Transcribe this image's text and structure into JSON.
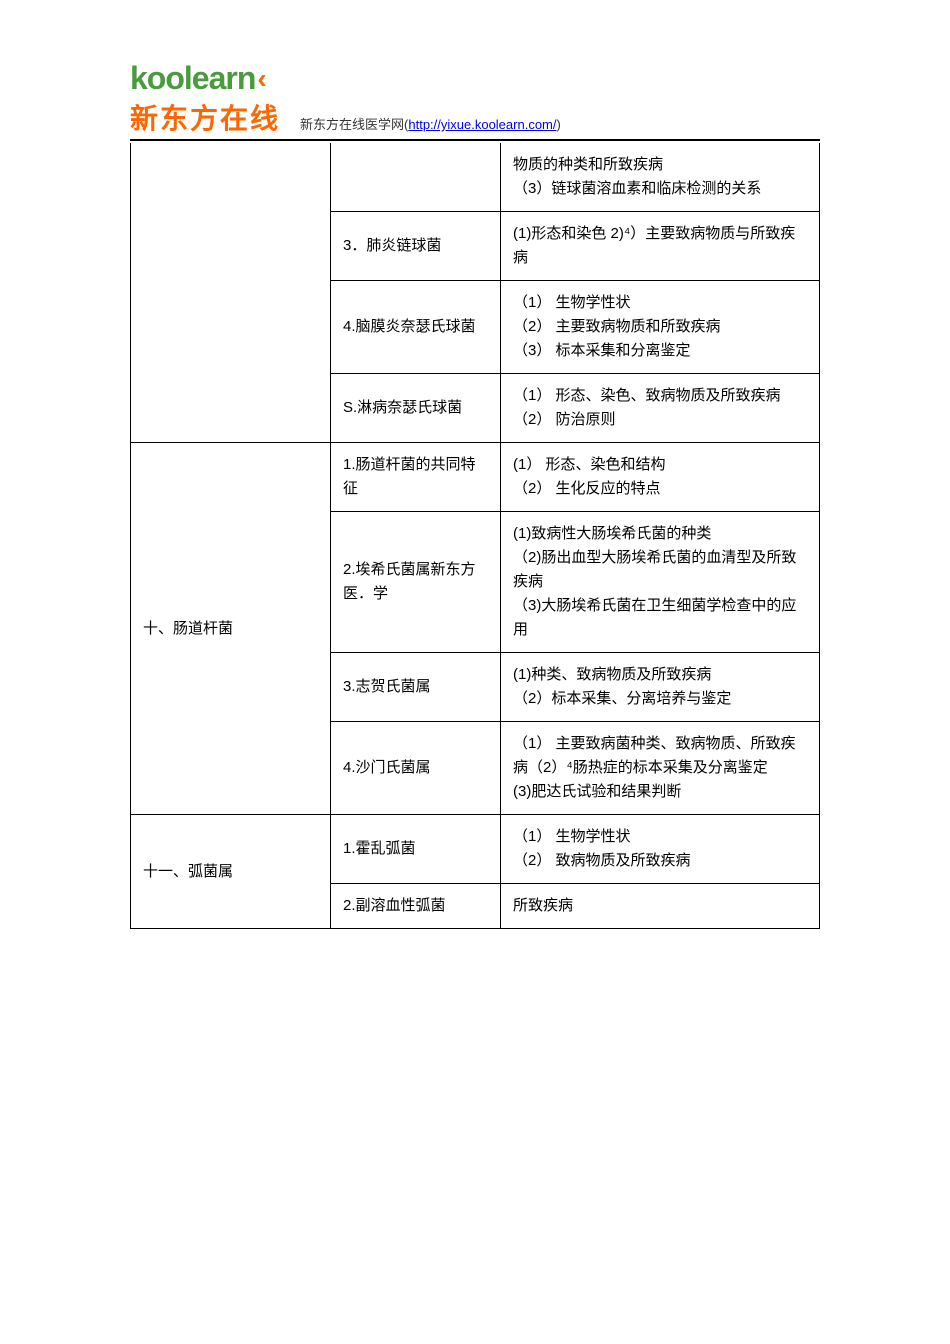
{
  "logo": {
    "top": "koolearn",
    "bottom": "新东方在线"
  },
  "header": {
    "prefix": "新东方在线医学网(",
    "url": "http://yixue.koolearn.com/",
    "suffix": ")"
  },
  "table": {
    "rows": [
      {
        "col1": "",
        "col2": "",
        "col3": "物质的种类和所致疾病\n（3）链球菌溶血素和临床检测的关系"
      },
      {
        "col1": "",
        "col2": "3．肺炎链球菌",
        "col3": "(1)形态和染色 2)⁴）主要致病物质与所致疾病"
      },
      {
        "col1": "",
        "col2": "4.脑膜炎奈瑟氏球菌",
        "col3": "（1） 生物学性状\n（2） 主要致病物质和所致疾病\n（3） 标本采集和分离鉴定"
      },
      {
        "col1": "",
        "col2": "S.淋病奈瑟氏球菌",
        "col3": "（1） 形态、染色、致病物质及所致疾病\n（2） 防治原则"
      },
      {
        "col1": "十、肠道杆菌",
        "col2": "1.肠道杆菌的共同特征",
        "col3": "(1） 形态、染色和结构\n（2） 生化反应的特点"
      },
      {
        "col1": "",
        "col2": "2.埃希氏菌属新东方医．学",
        "col3": "(1)致病性大肠埃希氏菌的种类\n（2)肠出血型大肠埃希氏菌的血清型及所致疾病\n（3)大肠埃希氏菌在卫生细菌学检查中的应用"
      },
      {
        "col1": "",
        "col2": "3.志贺氏菌属",
        "col3": "(1)种类、致病物质及所致疾病\n（2）标本采集、分离培养与鉴定"
      },
      {
        "col1": "",
        "col2": "4.沙门氏菌属",
        "col3": "（1） 主要致病菌种类、致病物质、所致疾病（2）⁴肠热症的标本采集及分离鉴定\n(3)肥达氏试验和结果判断"
      },
      {
        "col1": "十一、弧菌属",
        "col2": "1.霍乱弧菌",
        "col3": "（1） 生物学性状\n（2） 致病物质及所致疾病"
      },
      {
        "col1": "",
        "col2": "2.副溶血性弧菌",
        "col3": "所致疾病"
      }
    ]
  }
}
